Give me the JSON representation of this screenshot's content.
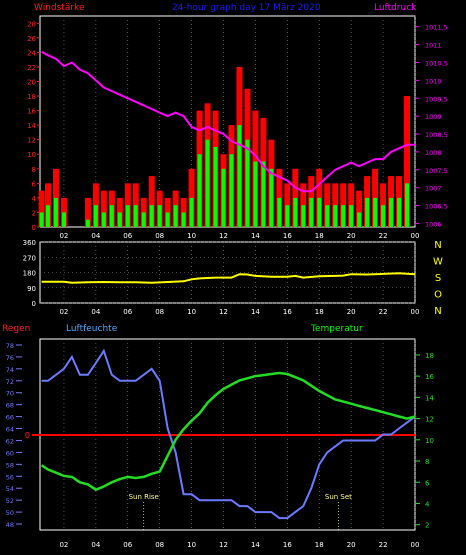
{
  "header": {
    "left_title": "Windstärke",
    "center_title": "24-hour graph day  17 März 2020",
    "right_title": "Luftdruck"
  },
  "colors": {
    "background": "#000000",
    "frame": "#ffffff",
    "wind_gust": "#ff0000",
    "wind_avg": "#00ff00",
    "pressure": "#ff00ff",
    "direction": "#ffff00",
    "humidity": "#6b7bff",
    "temperature": "#22dd22",
    "rain": "#ff0000",
    "grid": "#8a8a8a",
    "title_blue": "#1a1aff",
    "title_red": "#ff2020",
    "title_magenta": "#ff00ff",
    "title_cyan": "#4aa8ff",
    "title_green": "#00ff00",
    "direction_label": "#ffff00",
    "tick_label": "#ffffff",
    "sun_label": "#ffff80"
  },
  "x_ticks": [
    "02",
    "04",
    "06",
    "08",
    "10",
    "12",
    "14",
    "16",
    "18",
    "20",
    "22",
    "00"
  ],
  "chart_data": [
    {
      "type": "bar",
      "name": "wind-and-pressure",
      "x_unit": "hour",
      "xlim": [
        0.5,
        24.0
      ],
      "y_left_ticks": [
        "0",
        "2",
        "4",
        "6",
        "8",
        "10",
        "12",
        "14",
        "16",
        "18",
        "20",
        "22",
        "24",
        "26",
        "28"
      ],
      "ylim_left": [
        0,
        29
      ],
      "y_right_ticks": [
        "1006",
        "1006.5",
        "1007",
        "1007.5",
        "1008",
        "1008.5",
        "1009",
        "1009.5",
        "1010",
        "1010.5",
        "1011",
        "1011.5"
      ],
      "ylim_right": [
        1005.9,
        1011.8
      ],
      "series": [
        {
          "name": "Windstärke",
          "role": "gust",
          "x": [
            0.6,
            1.0,
            1.5,
            2.0,
            2.5,
            3.0,
            3.5,
            4.0,
            4.5,
            5.0,
            5.5,
            6.0,
            6.5,
            7.0,
            7.5,
            8.0,
            8.5,
            9.0,
            9.5,
            10.0,
            10.5,
            11.0,
            11.5,
            12.0,
            12.5,
            13.0,
            13.5,
            14.0,
            14.5,
            15.0,
            15.5,
            16.0,
            16.5,
            17.0,
            17.5,
            18.0,
            18.5,
            19.0,
            19.5,
            20.0,
            20.5,
            21.0,
            21.5,
            22.0,
            22.5,
            23.0,
            23.5
          ],
          "values": [
            5,
            6,
            8,
            4,
            0,
            0,
            4,
            6,
            5,
            5,
            4,
            6,
            6,
            4,
            7,
            5,
            4,
            5,
            4,
            8,
            16,
            17,
            16,
            10,
            14,
            22,
            19,
            16,
            15,
            12,
            8,
            6,
            8,
            6,
            7,
            8,
            6,
            6,
            6,
            6,
            5,
            7,
            8,
            6,
            7,
            7,
            18
          ]
        },
        {
          "name": "Wind average",
          "role": "average",
          "x": [
            0.6,
            1.0,
            1.5,
            2.0,
            2.5,
            3.0,
            3.5,
            4.0,
            4.5,
            5.0,
            5.5,
            6.0,
            6.5,
            7.0,
            7.5,
            8.0,
            8.5,
            9.0,
            9.5,
            10.0,
            10.5,
            11.0,
            11.5,
            12.0,
            12.5,
            13.0,
            13.5,
            14.0,
            14.5,
            15.0,
            15.5,
            16.0,
            16.5,
            17.0,
            17.5,
            18.0,
            18.5,
            19.0,
            19.5,
            20.0,
            20.5,
            21.0,
            21.5,
            22.0,
            22.5,
            23.0,
            23.5
          ],
          "values": [
            2,
            3,
            4,
            2,
            0,
            0,
            1,
            3,
            2,
            3,
            2,
            3,
            3,
            2,
            3,
            3,
            2,
            3,
            2,
            4,
            10,
            12,
            11,
            8,
            10,
            14,
            12,
            9,
            9,
            8,
            4,
            3,
            4,
            3,
            4,
            4,
            3,
            3,
            3,
            3,
            2,
            4,
            4,
            3,
            4,
            4,
            6
          ]
        },
        {
          "name": "Luftdruck",
          "role": "pressure",
          "axis": "right",
          "x": [
            0.6,
            1.0,
            1.5,
            2.0,
            2.5,
            3.0,
            3.5,
            4.0,
            4.5,
            5.0,
            5.5,
            6.0,
            6.5,
            7.0,
            7.5,
            8.0,
            8.5,
            9.0,
            9.5,
            10.0,
            10.5,
            11.0,
            11.5,
            12.0,
            12.5,
            13.0,
            13.5,
            14.0,
            14.5,
            15.0,
            15.5,
            16.0,
            16.5,
            17.0,
            17.5,
            18.0,
            18.5,
            19.0,
            19.5,
            20.0,
            20.5,
            21.0,
            21.5,
            22.0,
            22.5,
            23.0,
            23.5,
            24.0
          ],
          "values": [
            1010.8,
            1010.7,
            1010.6,
            1010.4,
            1010.5,
            1010.3,
            1010.2,
            1010.0,
            1009.8,
            1009.7,
            1009.6,
            1009.5,
            1009.4,
            1009.3,
            1009.2,
            1009.1,
            1009.0,
            1009.1,
            1009.0,
            1008.7,
            1008.6,
            1008.7,
            1008.6,
            1008.5,
            1008.3,
            1008.2,
            1008.1,
            1007.9,
            1007.6,
            1007.4,
            1007.3,
            1007.2,
            1007.0,
            1006.9,
            1006.9,
            1007.1,
            1007.3,
            1007.5,
            1007.6,
            1007.7,
            1007.6,
            1007.7,
            1007.8,
            1007.8,
            1008.0,
            1008.1,
            1008.2,
            1008.2
          ]
        }
      ]
    },
    {
      "type": "line",
      "name": "wind-direction",
      "xlim": [
        0.5,
        24.0
      ],
      "y_ticks": [
        "0",
        "90",
        "180",
        "270",
        "360"
      ],
      "ylim": [
        0,
        360
      ],
      "direction_labels": [
        "N",
        "W",
        "S",
        "O",
        "N"
      ],
      "series": [
        {
          "name": "Windrichtung",
          "x": [
            0.6,
            1.5,
            2.0,
            2.5,
            3.5,
            4.5,
            5.5,
            6.5,
            7.5,
            8.5,
            9.5,
            10.0,
            10.5,
            11.5,
            12.5,
            13.0,
            13.5,
            14.0,
            15.0,
            16.0,
            16.5,
            17.0,
            18.0,
            19.0,
            19.5,
            20.0,
            21.0,
            22.0,
            23.0,
            24.0
          ],
          "values": [
            125,
            125,
            125,
            120,
            122,
            124,
            122,
            122,
            120,
            124,
            128,
            140,
            145,
            150,
            150,
            170,
            168,
            160,
            155,
            155,
            160,
            150,
            158,
            160,
            162,
            170,
            168,
            172,
            175,
            170
          ]
        }
      ]
    },
    {
      "type": "line",
      "name": "humidity-temperature",
      "xlim": [
        0.5,
        24.0
      ],
      "left_title": "Regen",
      "center_title": "Luftfeuchte",
      "right_title": "Temperatur",
      "y_left_ticks": [
        "48",
        "50",
        "52",
        "54",
        "56",
        "58",
        "60",
        "62",
        "64",
        "66",
        "68",
        "70",
        "72",
        "74",
        "76",
        "78"
      ],
      "ylim_left": [
        47,
        79
      ],
      "y_right_ticks": [
        "2",
        "4",
        "6",
        "8",
        "10",
        "12",
        "14",
        "16",
        "18"
      ],
      "ylim_right": [
        1.5,
        19.5
      ],
      "zero_line_label": "0",
      "annotations": [
        {
          "label": "Sun Rise",
          "x": 7.0
        },
        {
          "label": "Sun Set",
          "x": 19.2
        }
      ],
      "series": [
        {
          "name": "Luftfeuchte",
          "axis": "left",
          "x": [
            0.6,
            1.0,
            1.5,
            2.0,
            2.5,
            3.0,
            3.5,
            4.0,
            4.5,
            5.0,
            5.5,
            6.0,
            6.5,
            7.0,
            7.5,
            8.0,
            8.5,
            9.0,
            9.5,
            10.0,
            10.5,
            11.0,
            11.5,
            12.0,
            12.5,
            13.0,
            13.5,
            14.0,
            14.5,
            15.0,
            15.5,
            16.0,
            16.5,
            17.0,
            17.5,
            18.0,
            18.5,
            19.0,
            19.5,
            20.0,
            20.5,
            21.0,
            21.5,
            22.0,
            22.5,
            23.0,
            23.5,
            24.0
          ],
          "values": [
            72,
            72,
            73,
            74,
            76,
            73,
            73,
            75,
            77,
            73,
            72,
            72,
            72,
            73,
            74,
            72,
            64,
            60,
            53,
            53,
            52,
            52,
            52,
            52,
            52,
            51,
            51,
            50,
            50,
            50,
            49,
            49,
            50,
            51,
            54,
            58,
            60,
            61,
            62,
            62,
            62,
            62,
            62,
            63,
            63,
            64,
            65,
            66
          ]
        },
        {
          "name": "Temperatur",
          "axis": "right",
          "x": [
            0.6,
            1.0,
            1.5,
            2.0,
            2.5,
            3.0,
            3.5,
            4.0,
            4.5,
            5.0,
            5.5,
            6.0,
            6.5,
            7.0,
            7.5,
            8.0,
            8.5,
            9.0,
            9.5,
            10.0,
            10.5,
            11.0,
            11.5,
            12.0,
            12.5,
            13.0,
            13.5,
            14.0,
            14.5,
            15.0,
            15.5,
            16.0,
            16.5,
            17.0,
            17.5,
            18.0,
            18.5,
            19.0,
            19.5,
            20.0,
            20.5,
            21.0,
            21.5,
            22.0,
            22.5,
            23.0,
            23.5,
            24.0
          ],
          "values": [
            7.6,
            7.2,
            6.9,
            6.6,
            6.5,
            6.0,
            5.8,
            5.3,
            5.6,
            6.0,
            6.3,
            6.5,
            6.4,
            6.5,
            6.8,
            7.0,
            8.5,
            10.0,
            11.0,
            11.8,
            12.5,
            13.5,
            14.2,
            14.8,
            15.2,
            15.6,
            15.8,
            16.0,
            16.1,
            16.2,
            16.3,
            16.2,
            15.9,
            15.6,
            15.1,
            14.6,
            14.2,
            13.8,
            13.6,
            13.4,
            13.2,
            13.0,
            12.8,
            12.6,
            12.4,
            12.2,
            12.0,
            12.2
          ]
        },
        {
          "name": "Regen",
          "axis": "rain",
          "x": [
            0.6,
            24.0
          ],
          "values": [
            0,
            0
          ]
        }
      ]
    }
  ]
}
